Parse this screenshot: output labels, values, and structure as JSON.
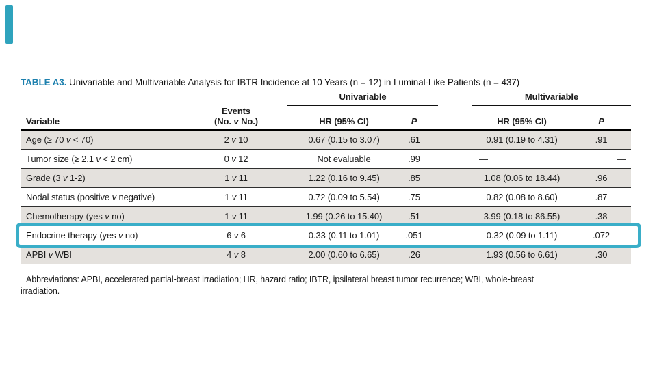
{
  "accent": {
    "bar_color": "#2fa3bd"
  },
  "title": {
    "label": "TABLE A3.",
    "label_color": "#1d80ae",
    "text": "Univariable and Multivariable Analysis for IBTR Incidence at 10 Years (n = 12) in Luminal-Like Patients (n = 437)"
  },
  "table": {
    "stripe_color": "#e4e1dd",
    "highlight_color": "#3aaec8",
    "group_headers": {
      "univariable": "Univariable",
      "multivariable": "Multivariable"
    },
    "columns": {
      "variable": "Variable",
      "events_line1": "Events",
      "events_line2": "(No. v No.)",
      "uni_hr": "HR (95% CI)",
      "uni_p": "P",
      "multi_hr": "HR (95% CI)",
      "multi_p": "P"
    },
    "rows": [
      {
        "variable": "Age (≥ 70 v < 70)",
        "events": "2 v 10",
        "uni_hr": "0.67 (0.15 to 3.07)",
        "uni_p": ".61",
        "multi_hr": "0.91 (0.19 to 4.31)",
        "multi_p": ".91",
        "shaded": true,
        "highlighted": false
      },
      {
        "variable": "Tumor size (≥ 2.1 v < 2 cm)",
        "events": "0 v 12",
        "uni_hr": "Not evaluable",
        "uni_p": ".99",
        "multi_hr": "—",
        "multi_p": "—",
        "shaded": false,
        "highlighted": false
      },
      {
        "variable": "Grade (3 v 1-2)",
        "events": "1 v 11",
        "uni_hr": "1.22 (0.16 to 9.45)",
        "uni_p": ".85",
        "multi_hr": "1.08 (0.06 to 18.44)",
        "multi_p": ".96",
        "shaded": true,
        "highlighted": false
      },
      {
        "variable": "Nodal status (positive v negative)",
        "events": "1 v 11",
        "uni_hr": "0.72 (0.09 to 5.54)",
        "uni_p": ".75",
        "multi_hr": "0.82 (0.08 to 8.60)",
        "multi_p": ".87",
        "shaded": false,
        "highlighted": false
      },
      {
        "variable": "Chemotherapy (yes v no)",
        "events": "1 v 11",
        "uni_hr": "1.99 (0.26 to 15.40)",
        "uni_p": ".51",
        "multi_hr": "3.99 (0.18 to 86.55)",
        "multi_p": ".38",
        "shaded": true,
        "highlighted": false
      },
      {
        "variable": "Endocrine therapy (yes v no)",
        "events": "6 v 6",
        "uni_hr": "0.33 (0.11 to 1.01)",
        "uni_p": ".051",
        "multi_hr": "0.32 (0.09 to 1.11)",
        "multi_p": ".072",
        "shaded": false,
        "highlighted": true
      },
      {
        "variable": "APBI v WBI",
        "events": "4 v 8",
        "uni_hr": "2.00 (0.60 to 6.65)",
        "uni_p": ".26",
        "multi_hr": "1.93 (0.56 to 6.61)",
        "multi_p": ".30",
        "shaded": true,
        "highlighted": false
      }
    ]
  },
  "footnote": {
    "lines": [
      "Abbreviations: APBI, accelerated partial-breast irradiation; HR, hazard ratio; IBTR, ipsilateral breast tumor recurrence; WBI, whole-breast",
      "irradiation."
    ]
  }
}
